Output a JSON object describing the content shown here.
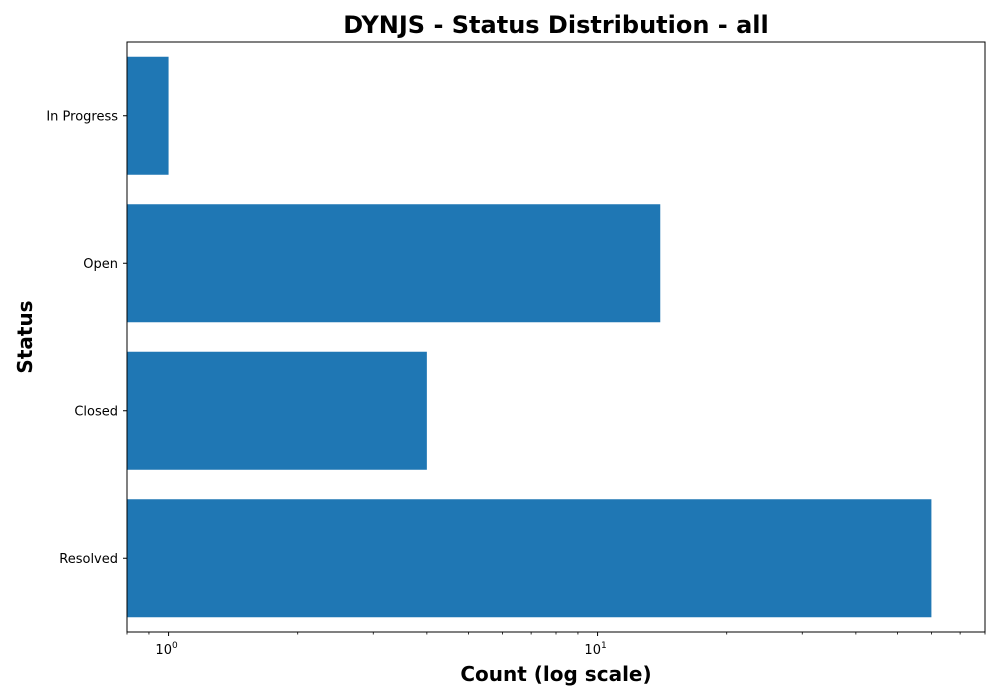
{
  "colors": {
    "bar": "#1f77b4",
    "axis": "#000000",
    "background": "#ffffff"
  },
  "chart_data": {
    "type": "bar",
    "orientation": "horizontal",
    "title": "DYNJS - Status Distribution - all",
    "xlabel": "Count (log scale)",
    "ylabel": "Status",
    "x_scale": "log",
    "xlim": [
      0.8,
      80
    ],
    "categories": [
      "In Progress",
      "Open",
      "Closed",
      "Resolved"
    ],
    "values": [
      1,
      14,
      4,
      60
    ],
    "major_ticks": [
      {
        "base": "10",
        "exp": "0",
        "value": 1
      },
      {
        "base": "10",
        "exp": "1",
        "value": 10
      }
    ],
    "grid": false,
    "legend": "none"
  }
}
